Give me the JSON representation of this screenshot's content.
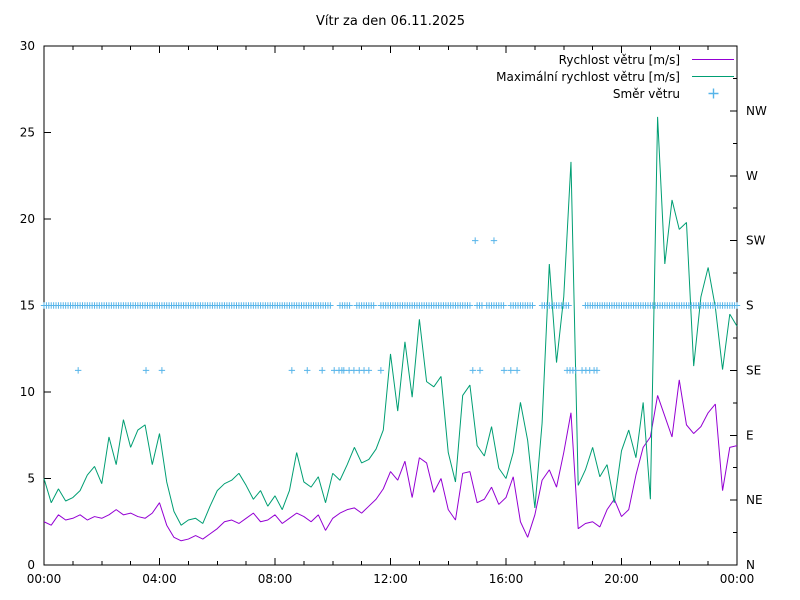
{
  "title": "Vítr za den 06.11.2025",
  "colors": {
    "avg_speed": "#9400d3",
    "max_speed": "#009e73",
    "direction": "#56b4e9",
    "axis": "#000000",
    "background": "#ffffff"
  },
  "legend": [
    {
      "label": "Rychlost větru [m/s]",
      "symbol": "line",
      "color": "#9400d3"
    },
    {
      "label": "Maximální rychlost větru [m/s]",
      "symbol": "line",
      "color": "#009e73"
    },
    {
      "label": "Směr větru",
      "symbol": "plus",
      "color": "#56b4e9"
    }
  ],
  "chart_data": {
    "type": "line",
    "title": "Vítr za den 06.11.2025",
    "grid": false,
    "legend_position": "top-right-inside",
    "x_axis": {
      "range_minutes": [
        0,
        1440
      ],
      "major_step_minutes": 240,
      "minor_step_minutes": 60,
      "tick_labels": [
        "00:00",
        "04:00",
        "08:00",
        "12:00",
        "16:00",
        "20:00",
        "00:00"
      ]
    },
    "y_axis_left": {
      "range": [
        0,
        30
      ],
      "major_step": 5,
      "tick_labels": [
        "0",
        "5",
        "10",
        "15",
        "20",
        "25",
        "30"
      ],
      "unit": "m/s"
    },
    "y_axis_right": {
      "tick_labels": [
        "N",
        "NE",
        "E",
        "SE",
        "S",
        "SW",
        "W",
        "NW"
      ],
      "values": [
        0,
        3.75,
        7.5,
        11.25,
        15,
        18.75,
        22.5,
        26.25
      ],
      "minor_step": 1.875
    },
    "series": [
      {
        "name": "Rychlost větru [m/s]",
        "type": "line",
        "color": "#9400d3",
        "step_minutes": 15,
        "values": [
          2.5,
          2.3,
          2.9,
          2.6,
          2.7,
          2.9,
          2.6,
          2.8,
          2.7,
          2.9,
          3.2,
          2.9,
          3.0,
          2.8,
          2.7,
          3.0,
          3.6,
          2.3,
          1.6,
          1.4,
          1.5,
          1.7,
          1.5,
          1.8,
          2.1,
          2.5,
          2.6,
          2.4,
          2.7,
          3.0,
          2.5,
          2.6,
          2.9,
          2.4,
          2.7,
          3.0,
          2.8,
          2.5,
          2.9,
          2.0,
          2.7,
          3.0,
          3.2,
          3.3,
          3.0,
          3.4,
          3.8,
          4.4,
          5.4,
          4.9,
          6.0,
          3.9,
          6.2,
          5.9,
          4.2,
          5.0,
          3.2,
          2.6,
          5.3,
          5.4,
          3.6,
          3.8,
          4.5,
          3.5,
          3.9,
          5.1,
          2.5,
          1.6,
          2.9,
          4.9,
          5.5,
          4.5,
          6.5,
          8.8,
          2.1,
          2.4,
          2.5,
          2.2,
          3.2,
          3.8,
          2.8,
          3.2,
          5.2,
          6.8,
          7.4,
          9.8,
          8.6,
          7.4,
          10.7,
          8.1,
          7.6,
          8.0,
          8.8,
          9.3,
          4.3,
          6.8,
          6.9
        ]
      },
      {
        "name": "Maximální rychlost větru [m/s]",
        "type": "line",
        "color": "#009e73",
        "step_minutes": 15,
        "values": [
          5.0,
          3.6,
          4.4,
          3.7,
          3.9,
          4.3,
          5.2,
          5.7,
          4.7,
          7.4,
          5.8,
          8.4,
          6.8,
          7.8,
          8.1,
          5.8,
          7.6,
          4.8,
          3.1,
          2.3,
          2.6,
          2.7,
          2.4,
          3.4,
          4.3,
          4.7,
          4.9,
          5.3,
          4.6,
          3.8,
          4.3,
          3.4,
          4.0,
          3.2,
          4.3,
          6.5,
          4.8,
          4.5,
          5.1,
          3.6,
          5.3,
          4.9,
          5.8,
          6.8,
          5.9,
          6.1,
          6.7,
          7.8,
          12.2,
          8.9,
          12.9,
          9.7,
          14.2,
          10.6,
          10.3,
          10.9,
          6.5,
          4.8,
          9.8,
          10.4,
          6.9,
          6.3,
          8.0,
          5.6,
          5.0,
          6.5,
          9.4,
          7.2,
          3.3,
          8.2,
          17.4,
          11.7,
          15.5,
          23.3,
          4.6,
          5.5,
          6.8,
          5.1,
          5.8,
          3.6,
          6.6,
          7.8,
          6.2,
          9.4,
          3.8,
          25.9,
          17.4,
          21.1,
          19.4,
          19.8,
          11.5,
          15.5,
          17.2,
          14.9,
          11.3,
          14.5,
          13.8
        ]
      },
      {
        "name": "Směr větru",
        "type": "scatter",
        "marker": "plus",
        "color": "#56b4e9",
        "direction_value_map": {
          "S": 15,
          "SE": 11.25,
          "SW": 18.75
        },
        "marker_segments_S_minutes": [
          [
            0,
            595
          ],
          [
            615,
            635
          ],
          [
            650,
            685
          ],
          [
            700,
            885
          ],
          [
            900,
            910
          ],
          [
            920,
            955
          ],
          [
            970,
            1015
          ],
          [
            1035,
            1090
          ],
          [
            1125,
            1440
          ]
        ],
        "segment_step_minutes": 5,
        "marker_minutes_SE": [
          71,
          212,
          245,
          515,
          547,
          578,
          603,
          613,
          619,
          623,
          634,
          644,
          655,
          665,
          675,
          700,
          891,
          906,
          956,
          970,
          983,
          1087,
          1093,
          1099,
          1105,
          1118,
          1126,
          1134,
          1143,
          1149
        ],
        "marker_minutes_SW": [
          896,
          935
        ]
      }
    ]
  }
}
